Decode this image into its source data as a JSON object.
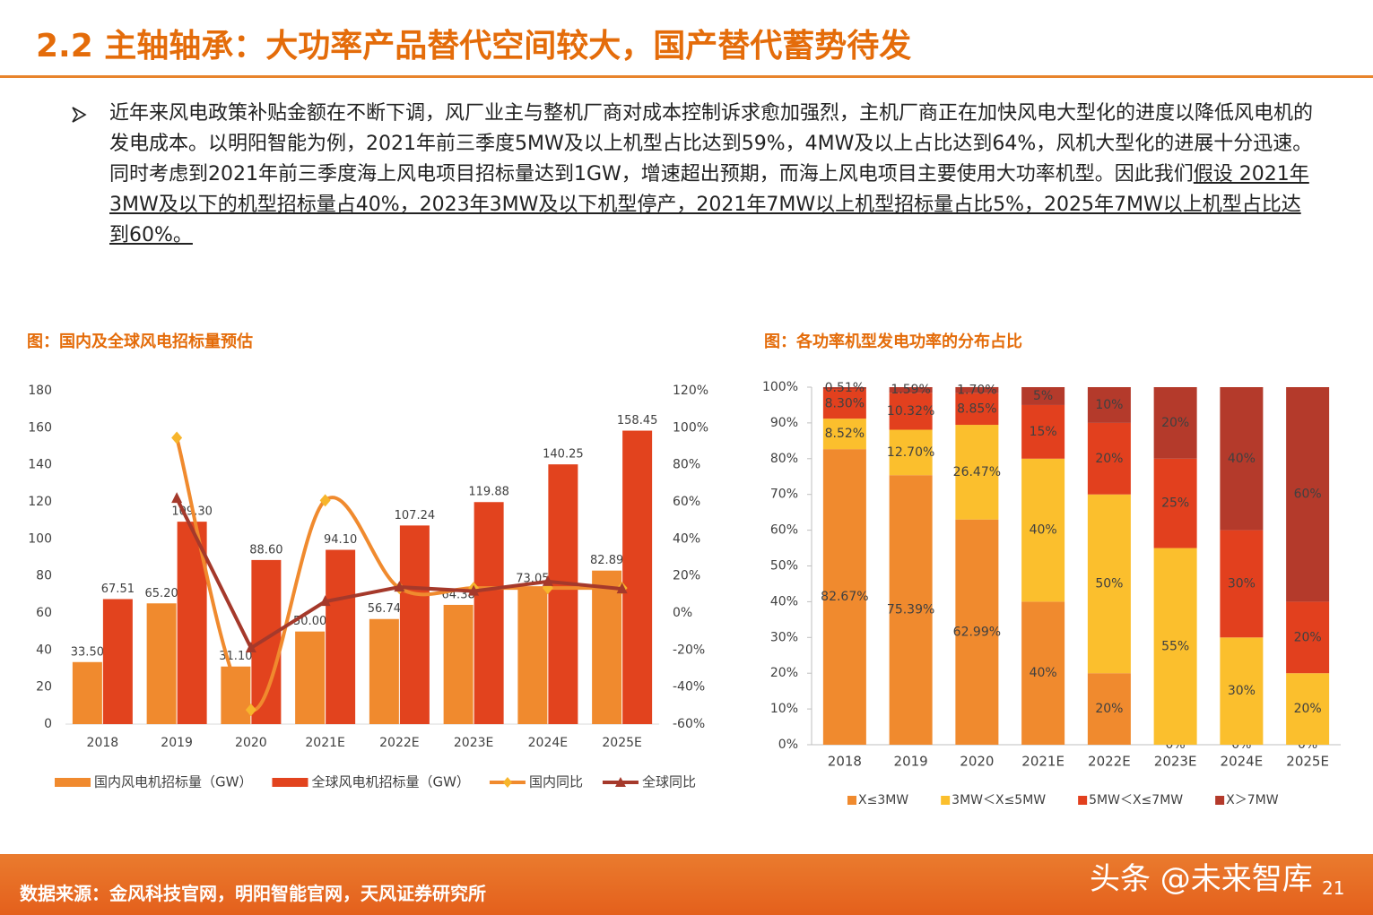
{
  "header": {
    "title": "2.2 主轴轴承：大功率产品替代空间较大，国产替代蓄势待发"
  },
  "bullet": {
    "text": "近年来风电政策补贴金额在不断下调，风厂业主与整机厂商对成本控制诉求愈加强烈，主机厂商正在加快风电大型化的进度以降低风电机的发电成本。以明阳智能为例，2021年前三季度5MW及以上机型占比达到59%，4MW及以上占比达到64%，风机大型化的进展十分迅速。同时考虑到2021年前三季度海上风电项目招标量达到1GW，增速超出预期，而海上风电项目主要使用大功率机型。因此我们",
    "underlined": "假设 2021年3MW及以下的机型招标量占40%，2023年3MW及以下机型停产，2021年7MW以上机型招标量占比5%，2025年7MW以上机型占比达到60%。"
  },
  "chart_data": [
    {
      "type": "bar",
      "title": "图：国内及全球风电招标量预估",
      "categories": [
        "2018",
        "2019",
        "2020",
        "2021E",
        "2022E",
        "2023E",
        "2024E",
        "2025E"
      ],
      "series": [
        {
          "name": "国内风电机招标量（GW）",
          "type": "bar",
          "color": "#f08a2e",
          "values": [
            33.5,
            65.2,
            31.1,
            50,
            56.74,
            64.38,
            73.05,
            82.89
          ],
          "value_labels": [
            "33.50",
            "65.20",
            "31.10",
            "50.00",
            "56.74",
            "64.38",
            "73.05",
            "82.89"
          ]
        },
        {
          "name": "全球风电机招标量（GW）",
          "type": "bar",
          "color": "#e2431e",
          "values": [
            67.51,
            109.3,
            88.6,
            94.1,
            107.24,
            119.88,
            140.25,
            158.45
          ],
          "value_labels": [
            "67.51",
            "109.30",
            "88.60",
            "94.10",
            "107.24",
            "119.88",
            "140.25",
            "158.45"
          ]
        },
        {
          "name": "国内同比",
          "type": "line",
          "axis": "y2",
          "color": "#f08a2e",
          "marker": "diamond",
          "marker_color": "#f7b52c",
          "smooth": true,
          "values": [
            null,
            94.6,
            -52.3,
            60.8,
            13.5,
            13.5,
            13.5,
            13.5
          ]
        },
        {
          "name": "全球同比",
          "type": "line",
          "axis": "y2",
          "color": "#a5392b",
          "marker": "triangle",
          "marker_color": "#a5392b",
          "smooth": false,
          "values": [
            null,
            61.9,
            -18.9,
            6.2,
            14.0,
            11.8,
            17.0,
            13.0
          ]
        }
      ],
      "ylim": [
        0,
        180
      ],
      "yticks": [
        0,
        20,
        40,
        60,
        80,
        100,
        120,
        140,
        160,
        180
      ],
      "y2lim": [
        -60,
        120
      ],
      "y2ticks": [
        {
          "value": -60,
          "label": "-60%"
        },
        {
          "value": -40,
          "label": "-40%"
        },
        {
          "value": -20,
          "label": "-20%"
        },
        {
          "value": 0,
          "label": "0%"
        },
        {
          "value": 20,
          "label": "20%"
        },
        {
          "value": 40,
          "label": "40%"
        },
        {
          "value": 60,
          "label": "60%"
        },
        {
          "value": 80,
          "label": "80%"
        },
        {
          "value": 100,
          "label": "100%"
        },
        {
          "value": 120,
          "label": "120%"
        }
      ],
      "grid": false
    },
    {
      "type": "stacked_bar",
      "title": "图：各功率机型发电功率的分布占比",
      "categories": [
        "2018",
        "2019",
        "2020",
        "2021E",
        "2022E",
        "2023E",
        "2024E",
        "2025E"
      ],
      "series": [
        {
          "name": "X≤3MW",
          "color": "#f08a2e",
          "values": [
            82.67,
            75.39,
            62.99,
            40,
            20,
            0,
            0,
            0
          ],
          "value_labels": [
            "82.67%",
            "75.39%",
            "62.99%",
            "40%",
            "20%",
            "0%",
            "0%",
            "0%"
          ]
        },
        {
          "name": "3MW＜X≤5MW",
          "color": "#fbbf2d",
          "values": [
            8.52,
            12.7,
            26.47,
            40,
            50,
            55,
            30,
            20
          ],
          "value_labels": [
            "8.52%",
            "12.70%",
            "26.47%",
            "40%",
            "50%",
            "55%",
            "30%",
            "20%"
          ]
        },
        {
          "name": "5MW＜X≤7MW",
          "color": "#e2401e",
          "values": [
            8.3,
            10.32,
            8.85,
            15,
            20,
            25,
            30,
            20
          ],
          "value_labels": [
            "8.30%",
            "10.32%",
            "8.85%",
            "15%",
            "20%",
            "25%",
            "30%",
            "20%"
          ]
        },
        {
          "name": "X＞7MW",
          "color": "#b43a2b",
          "values": [
            0.51,
            1.59,
            1.7,
            5,
            10,
            20,
            40,
            60
          ],
          "value_labels": [
            "0.51%",
            "1.59%",
            "1.70%",
            "5%",
            "10%",
            "20%",
            "40%",
            "60%"
          ]
        }
      ],
      "ylim": [
        0,
        100
      ],
      "yticks": [
        {
          "value": 0,
          "label": "0%"
        },
        {
          "value": 10,
          "label": "10%"
        },
        {
          "value": 20,
          "label": "20%"
        },
        {
          "value": 30,
          "label": "30%"
        },
        {
          "value": 40,
          "label": "40%"
        },
        {
          "value": 50,
          "label": "50%"
        },
        {
          "value": 60,
          "label": "60%"
        },
        {
          "value": 70,
          "label": "70%"
        },
        {
          "value": 80,
          "label": "80%"
        },
        {
          "value": 90,
          "label": "90%"
        },
        {
          "value": 100,
          "label": "100%"
        }
      ],
      "grid": false
    }
  ],
  "footer": {
    "source": "数据来源：金风科技官网，明阳智能官网，天风证券研究所",
    "watermark": "头条 @未来智库",
    "page": 21
  }
}
